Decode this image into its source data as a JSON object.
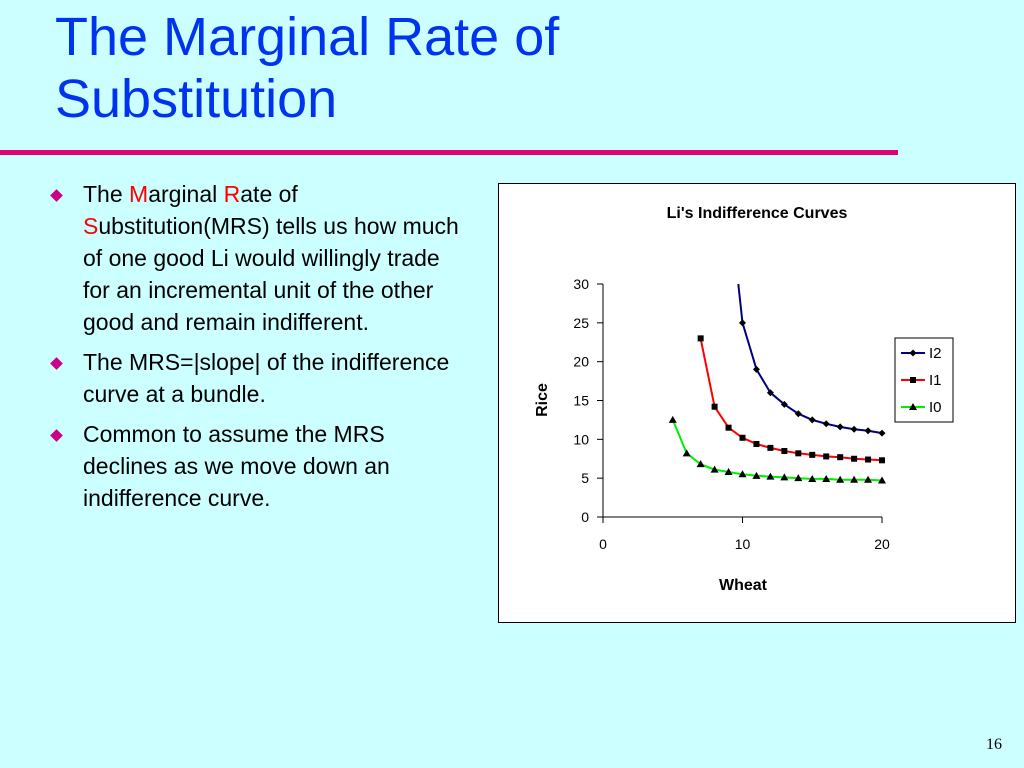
{
  "slide": {
    "title_line1": "The Marginal Rate of",
    "title_line2": "Substitution",
    "page_number": "16"
  },
  "bullets": [
    {
      "parts": [
        {
          "text": "The ",
          "red": false
        },
        {
          "text": "M",
          "red": true
        },
        {
          "text": "arginal ",
          "red": false
        },
        {
          "text": "R",
          "red": true
        },
        {
          "text": "ate of ",
          "red": false
        },
        {
          "text": "S",
          "red": true
        },
        {
          "text": "ubstitution(MRS) tells us how much of one good Li would willingly trade for an incremental unit of the other good and remain indifferent.",
          "red": false
        }
      ]
    },
    {
      "parts": [
        {
          "text": "The MRS=|slope| of the indifference curve at a bundle.",
          "red": false
        }
      ]
    },
    {
      "parts": [
        {
          "text": "Common to assume the MRS declines as we move down an indifference curve.",
          "red": false
        }
      ]
    }
  ],
  "colors": {
    "title": "#0033ee",
    "rule": "#dd0077",
    "bullet_marker": "#cc0088",
    "highlight": "#ff0000",
    "background": "#ccffff"
  },
  "chart_data": {
    "type": "line",
    "title": "Li's Indifference Curves",
    "xlabel": "Wheat",
    "ylabel": "Rice",
    "xlim": [
      0,
      20
    ],
    "ylim": [
      0,
      30
    ],
    "xticks": [
      0,
      10,
      20
    ],
    "yticks": [
      0,
      5,
      10,
      15,
      20,
      25,
      30
    ],
    "grid": false,
    "legend_position": "right",
    "series": [
      {
        "name": "I2",
        "color": "#000080",
        "marker": "diamond",
        "x": [
          9.7,
          10,
          11,
          12,
          13,
          14,
          15,
          16,
          17,
          18,
          19,
          20
        ],
        "y": [
          30,
          25,
          19,
          16,
          14.5,
          13.3,
          12.5,
          12,
          11.6,
          11.3,
          11.1,
          10.8
        ]
      },
      {
        "name": "I1",
        "color": "#ff0000",
        "marker": "square",
        "x": [
          7,
          8,
          9,
          10,
          11,
          12,
          13,
          14,
          15,
          16,
          17,
          18,
          19,
          20
        ],
        "y": [
          23,
          14.2,
          11.5,
          10.2,
          9.4,
          8.9,
          8.5,
          8.2,
          8,
          7.8,
          7.7,
          7.5,
          7.4,
          7.3
        ]
      },
      {
        "name": "I0",
        "color": "#00ee00",
        "marker": "triangle",
        "x": [
          5,
          6,
          7,
          8,
          9,
          10,
          11,
          12,
          13,
          14,
          15,
          16,
          17,
          18,
          19,
          20
        ],
        "y": [
          12.5,
          8.2,
          6.8,
          6.1,
          5.8,
          5.5,
          5.3,
          5.2,
          5.1,
          5,
          4.9,
          4.9,
          4.8,
          4.8,
          4.8,
          4.7
        ]
      }
    ]
  }
}
